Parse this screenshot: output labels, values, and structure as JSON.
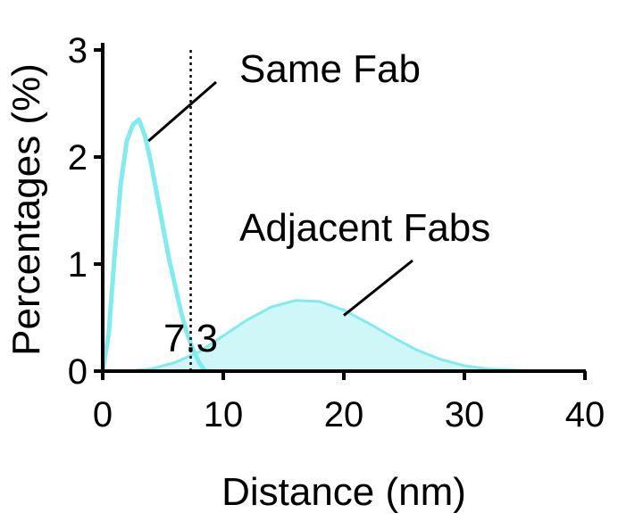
{
  "chart_data": {
    "type": "area",
    "xlabel": "Distance (nm)",
    "ylabel": "Percentages (%)",
    "xlim": [
      0,
      40
    ],
    "ylim": [
      0,
      3
    ],
    "x_ticks": [
      "0",
      "10",
      "20",
      "30",
      "40"
    ],
    "y_ticks": [
      "0",
      "1",
      "2",
      "3"
    ],
    "grid": false,
    "colors": {
      "series": "#7FECEF",
      "fill": "#CFF7F8",
      "axis": "#000000"
    },
    "threshold": {
      "x": 7.3,
      "label": "7.3",
      "style": "dotted"
    },
    "annotations": [
      {
        "text": "Same Fab",
        "points_to_x": 3.8,
        "points_to_y": 2.15
      },
      {
        "text": "Adjacent Fabs",
        "points_to_x": 20.0,
        "points_to_y": 0.52
      }
    ],
    "series": [
      {
        "name": "Same Fab",
        "style": "line",
        "x": [
          0,
          0.5,
          1,
          1.5,
          2,
          2.5,
          3,
          3.5,
          4,
          4.5,
          5,
          5.5,
          6,
          6.5,
          7,
          7.5,
          8,
          8.5
        ],
        "y": [
          0,
          0.35,
          1.1,
          1.75,
          2.15,
          2.3,
          2.35,
          2.2,
          1.95,
          1.65,
          1.35,
          1.05,
          0.8,
          0.55,
          0.35,
          0.2,
          0.08,
          0
        ]
      },
      {
        "name": "Adjacent Fabs",
        "style": "area",
        "x": [
          2,
          4,
          6,
          8,
          10,
          12,
          14,
          16,
          18,
          20,
          22,
          24,
          26,
          28,
          30,
          32,
          34,
          36
        ],
        "y": [
          0,
          0.02,
          0.08,
          0.18,
          0.33,
          0.48,
          0.6,
          0.66,
          0.65,
          0.57,
          0.45,
          0.32,
          0.2,
          0.11,
          0.05,
          0.02,
          0.01,
          0
        ]
      }
    ]
  }
}
